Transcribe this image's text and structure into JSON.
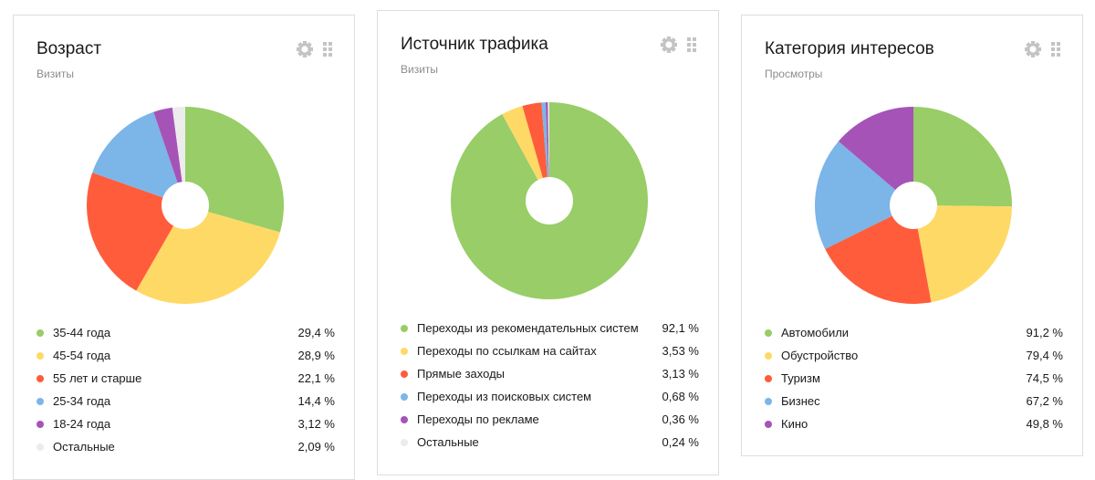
{
  "colors": {
    "green": "#98cd67",
    "yellow": "#ffd966",
    "red": "#ff5c3c",
    "blue": "#7cb5e8",
    "purple": "#a653b7",
    "light_gray": "#ececec",
    "icon_gray": "#c4c4c4"
  },
  "icons": {
    "settings": "gear-icon",
    "drag": "drag-handle-icon"
  },
  "chart_data": [
    {
      "type": "pie",
      "donut": true,
      "title": "Возраст",
      "subtitle": "Визиты",
      "unit": "%",
      "legend_position": "bottom",
      "slices": [
        {
          "label": "35-44 года",
          "display": "29,4 %",
          "value": 29.4,
          "color": "#98cd67"
        },
        {
          "label": "45-54 года",
          "display": "28,9 %",
          "value": 28.9,
          "color": "#ffd966"
        },
        {
          "label": "55 лет и старше",
          "display": "22,1 %",
          "value": 22.1,
          "color": "#ff5c3c"
        },
        {
          "label": "25-34 года",
          "display": "14,4 %",
          "value": 14.4,
          "color": "#7cb5e8"
        },
        {
          "label": "18-24 года",
          "display": "3,12 %",
          "value": 3.12,
          "color": "#a653b7"
        },
        {
          "label": "Остальные",
          "display": "2,09 %",
          "value": 2.09,
          "color": "#ececec"
        }
      ]
    },
    {
      "type": "pie",
      "donut": true,
      "title": "Источник трафика",
      "subtitle": "Визиты",
      "unit": "%",
      "legend_position": "bottom",
      "slices": [
        {
          "label": "Переходы из рекомендательных систем",
          "display": "92,1 %",
          "value": 92.1,
          "color": "#98cd67"
        },
        {
          "label": "Переходы по ссылкам на сайтах",
          "display": "3,53 %",
          "value": 3.53,
          "color": "#ffd966"
        },
        {
          "label": "Прямые заходы",
          "display": "3,13 %",
          "value": 3.13,
          "color": "#ff5c3c"
        },
        {
          "label": "Переходы из поисковых систем",
          "display": "0,68 %",
          "value": 0.68,
          "color": "#7cb5e8"
        },
        {
          "label": "Переходы по рекламе",
          "display": "0,36 %",
          "value": 0.36,
          "color": "#a653b7"
        },
        {
          "label": "Остальные",
          "display": "0,24 %",
          "value": 0.24,
          "color": "#ececec"
        }
      ]
    },
    {
      "type": "pie",
      "donut": true,
      "title": "Категория интересов",
      "subtitle": "Просмотры",
      "unit": "%",
      "legend_position": "bottom",
      "slices": [
        {
          "label": "Автомобили",
          "display": "91,2 %",
          "value": 91.2,
          "color": "#98cd67"
        },
        {
          "label": "Обустройство",
          "display": "79,4 %",
          "value": 79.4,
          "color": "#ffd966"
        },
        {
          "label": "Туризм",
          "display": "74,5 %",
          "value": 74.5,
          "color": "#ff5c3c"
        },
        {
          "label": "Бизнес",
          "display": "67,2 %",
          "value": 67.2,
          "color": "#7cb5e8"
        },
        {
          "label": "Кино",
          "display": "49,8 %",
          "value": 49.8,
          "color": "#a653b7"
        }
      ]
    }
  ]
}
